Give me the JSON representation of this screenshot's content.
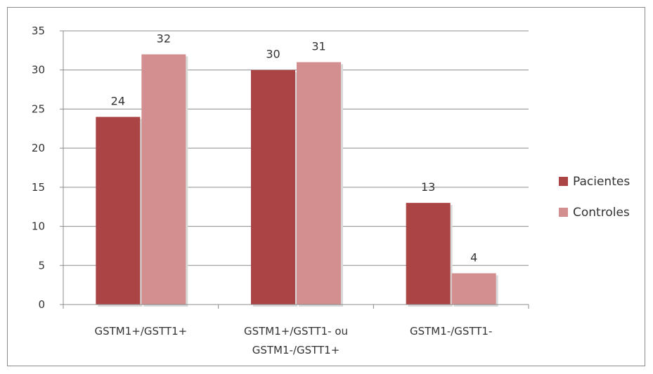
{
  "chart_data": {
    "type": "bar",
    "categories": [
      [
        "GSTM1+/GSTT1+"
      ],
      [
        "GSTM1+/GSTT1- ou",
        "GSTM1-/GSTT1+"
      ],
      [
        "GSTM1-/GSTT1-"
      ]
    ],
    "series": [
      {
        "name": "Pacientes",
        "values": [
          24,
          30,
          13
        ],
        "color": "#ab4444"
      },
      {
        "name": "Controles",
        "values": [
          32,
          31,
          4
        ],
        "color": "#d38f8f"
      }
    ],
    "ylim": [
      0,
      35
    ],
    "yticks": [
      0,
      5,
      10,
      15,
      20,
      25,
      30,
      35
    ],
    "grid": true,
    "legend": "right",
    "title": "",
    "xlabel": "",
    "ylabel": ""
  }
}
